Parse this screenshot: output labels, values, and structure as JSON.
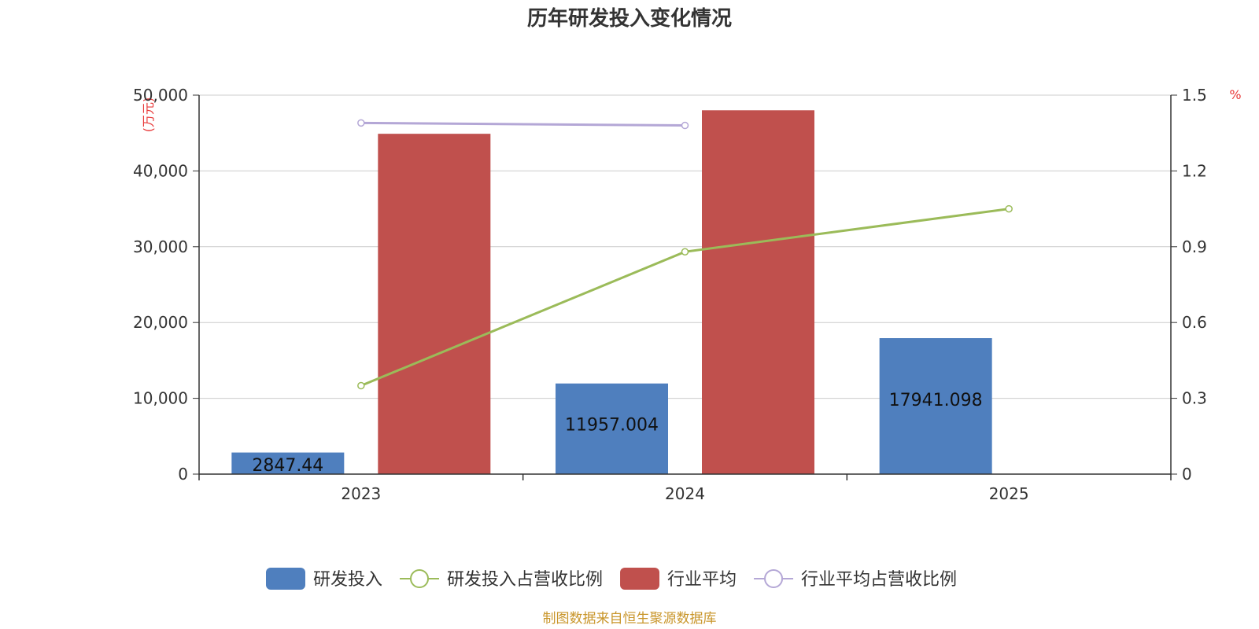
{
  "chart_data": {
    "type": "bar",
    "title": "历年研发投入变化情况",
    "categories": [
      "2023",
      "2024",
      "2025"
    ],
    "y_left": {
      "label": "(万元)",
      "range": [
        0,
        50000
      ],
      "ticks": [
        "0",
        "10,000",
        "20,000",
        "30,000",
        "40,000",
        "50,000"
      ]
    },
    "y_right": {
      "label": "%",
      "range": [
        0,
        1.5
      ],
      "ticks": [
        "0",
        "0.3",
        "0.6",
        "0.9",
        "1.2",
        "1.5"
      ]
    },
    "grid": true,
    "legend_position": "bottom",
    "series": [
      {
        "name": "研发投入",
        "type": "bar",
        "axis": "left",
        "color": "#4f7fbe",
        "values": [
          2847.44,
          11957.004,
          17941.098
        ],
        "labels": [
          "2847.44",
          "11957.004",
          "17941.098"
        ]
      },
      {
        "name": "研发投入占营收比例",
        "type": "line",
        "axis": "right",
        "color": "#9bbb59",
        "values": [
          0.35,
          0.88,
          1.05
        ]
      },
      {
        "name": "行业平均",
        "type": "bar",
        "axis": "left",
        "color": "#c0504d",
        "values": [
          44900,
          48000,
          null
        ]
      },
      {
        "name": "行业平均占营收比例",
        "type": "line",
        "axis": "right",
        "color": "#b4a7d6",
        "values": [
          1.39,
          1.38,
          null
        ]
      }
    ]
  },
  "source": "制图数据来自恒生聚源数据库"
}
